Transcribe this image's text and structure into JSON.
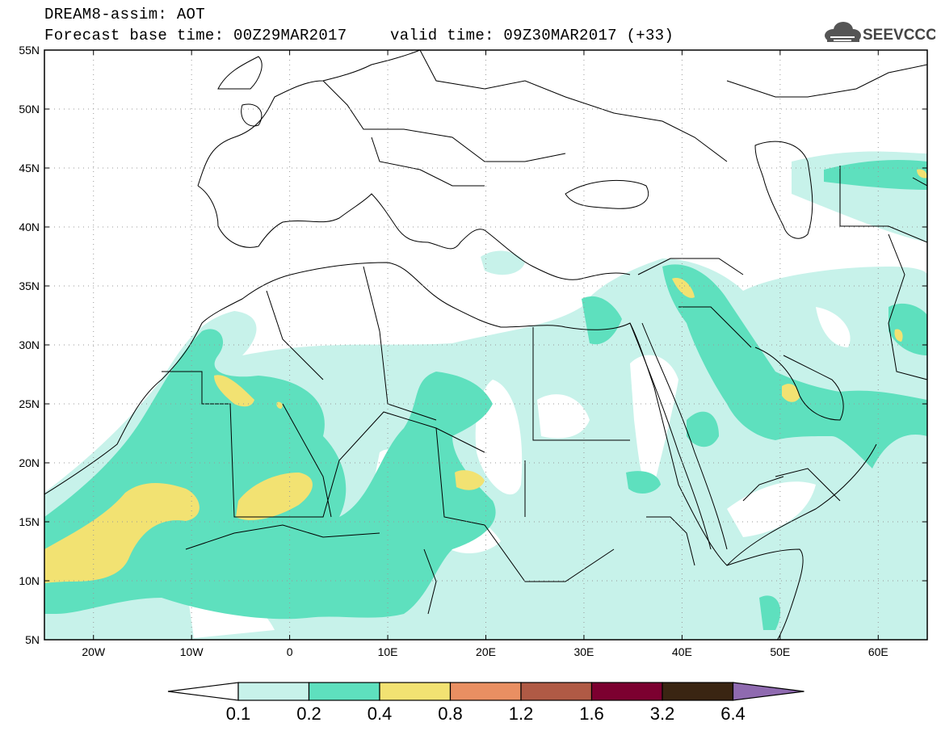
{
  "header": {
    "product": "DREAM8-assim: AOT",
    "base_time": "Forecast base time: 00Z29MAR2017",
    "valid_time": "valid time: 09Z30MAR2017 (+33)",
    "logo_text": "SEEVCCC"
  },
  "map": {
    "lon_range": [
      -25,
      65
    ],
    "lat_range": [
      5,
      55
    ],
    "lat_ticks": [
      "55N",
      "50N",
      "45N",
      "40N",
      "35N",
      "30N",
      "25N",
      "20N",
      "15N",
      "10N",
      "5N"
    ],
    "lon_ticks": [
      "20W",
      "10W",
      "0",
      "10E",
      "20E",
      "30E",
      "40E",
      "50E",
      "60E"
    ],
    "grid": true
  },
  "colorbar": {
    "labels": [
      "0.1",
      "0.2",
      "0.4",
      "0.8",
      "1.2",
      "1.6",
      "3.2",
      "6.4"
    ],
    "colors": [
      "#ffffff",
      "#c7f2ea",
      "#5ee0be",
      "#f2e272",
      "#e98f62",
      "#b05a45",
      "#7c0030",
      "#3a2512",
      "#8f6ab0"
    ]
  }
}
